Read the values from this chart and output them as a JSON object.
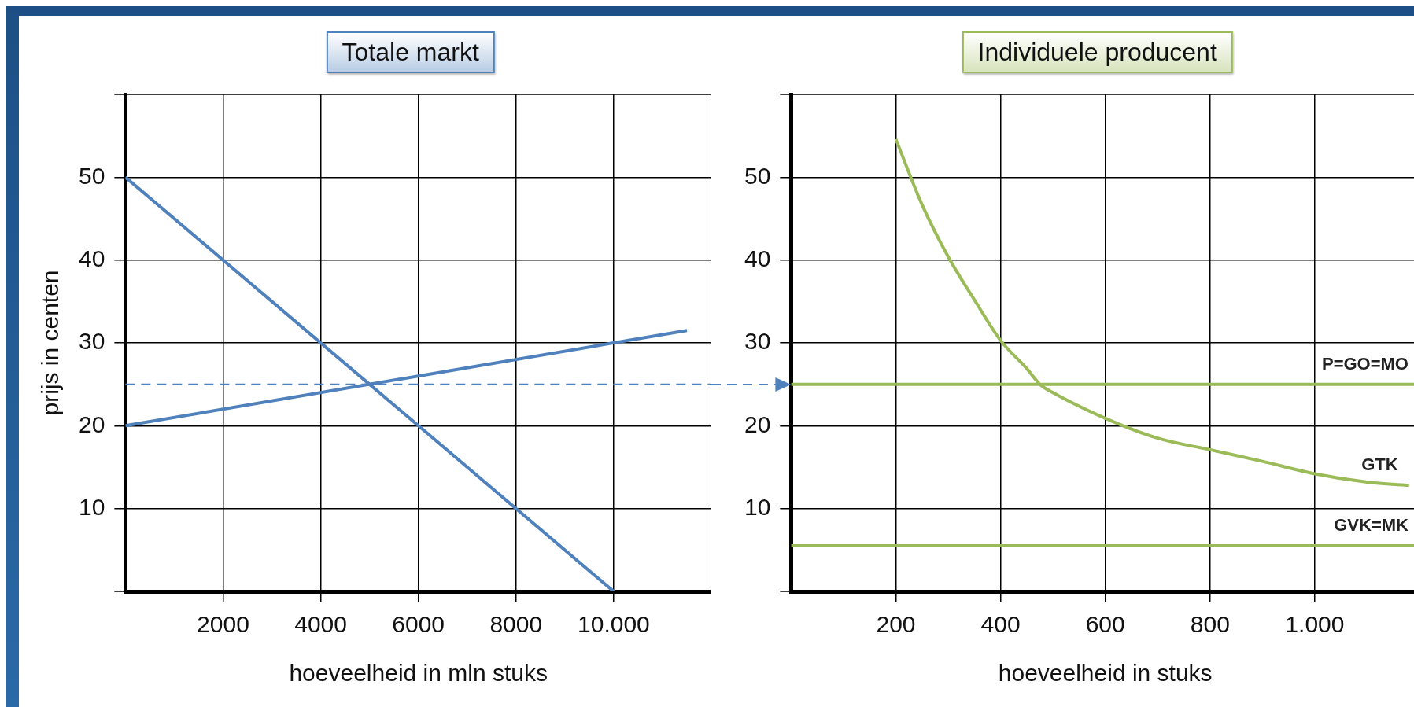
{
  "chart_data": [
    {
      "type": "line",
      "title": "Totale markt",
      "xlabel": "hoeveelheid in mln stuks",
      "ylabel": "prijs in centen",
      "xlim": [
        0,
        12000
      ],
      "ylim": [
        0,
        60
      ],
      "xticks": [
        2000,
        4000,
        6000,
        8000,
        {
          "value": 10000,
          "label": "10.000"
        }
      ],
      "yticks": [
        10,
        20,
        30,
        40,
        50
      ],
      "grid": true,
      "series": [
        {
          "color": "#4f81bd",
          "x": [
            0,
            10000
          ],
          "values": [
            50,
            0
          ]
        },
        {
          "color": "#4f81bd",
          "x": [
            0,
            11500
          ],
          "values": [
            20,
            31.5
          ]
        }
      ],
      "ref_lines": [
        {
          "axis": "y",
          "value": 25,
          "color": "#4f81bd",
          "line_style": "dashed"
        }
      ]
    },
    {
      "type": "line",
      "title": "Individuele producent",
      "xlabel": "hoeveelheid in stuks",
      "xlim": [
        0,
        1200
      ],
      "ylim": [
        0,
        60
      ],
      "xticks": [
        200,
        400,
        600,
        800,
        {
          "value": 1000,
          "label": "1.000"
        }
      ],
      "yticks": [
        10,
        20,
        30,
        40,
        50
      ],
      "grid": true,
      "series": [
        {
          "name": "P=GO=MO",
          "color": "#9bbb59",
          "x": [
            0,
            1200
          ],
          "values": [
            25,
            25
          ]
        },
        {
          "name": "GTK",
          "color": "#9bbb59",
          "x": [
            200,
            250,
            300,
            350,
            400,
            450,
            475,
            500,
            600,
            700,
            800,
            900,
            1000,
            1100,
            1180
          ],
          "values": [
            54.6,
            46.7,
            40.4,
            35.2,
            30.3,
            26.9,
            25,
            24,
            20.9,
            18.5,
            17.1,
            15.7,
            14.2,
            13.2,
            12.8
          ]
        },
        {
          "name": "GVK=MK",
          "color": "#9bbb59",
          "x": [
            0,
            1200
          ],
          "values": [
            5.5,
            5.5
          ]
        }
      ]
    }
  ]
}
